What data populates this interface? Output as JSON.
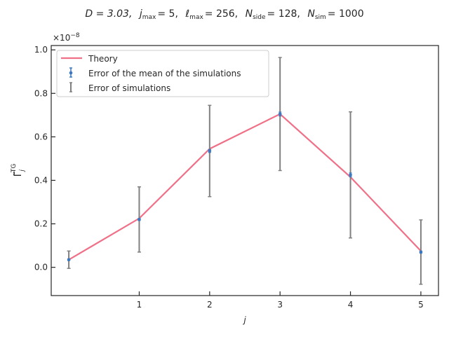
{
  "chart_data": {
    "type": "line",
    "title_parts": {
      "d": "D = 3.03,",
      "jmax": "j",
      "jmax_sub": "max",
      "jmax_val": "= 5,",
      "lmax": "ℓ",
      "lmax_sub": "max",
      "lmax_val": "= 256,",
      "nside": "N",
      "nside_sub": "side",
      "nside_val": "= 128,",
      "nsim": "N",
      "nsim_sub": "sim",
      "nsim_val": "= 1000"
    },
    "xlabel": "j",
    "ylabel": "Γ̃",
    "ylabel_sub": "j",
    "ylabel_sup": "TG",
    "y_scale_factor": "×10",
    "y_scale_exp": "−8",
    "xlim": [
      -0.25,
      5.25
    ],
    "ylim": [
      -0.13,
      1.02
    ],
    "x_ticks": [
      1,
      2,
      3,
      4,
      5
    ],
    "y_ticks": [
      0.0,
      0.2,
      0.4,
      0.6,
      0.8,
      1.0
    ],
    "y_tick_labels": [
      "0.0",
      "0.2",
      "0.4",
      "0.6",
      "0.8",
      "1.0"
    ],
    "legend_position": "top-left",
    "series": [
      {
        "name": "Theory",
        "kind": "line",
        "color": "#f07088",
        "x": [
          0,
          1,
          2,
          3,
          4,
          5
        ],
        "y": [
          0.035,
          0.225,
          0.545,
          0.705,
          0.415,
          0.075
        ]
      },
      {
        "name": "Error of the mean of the simulations",
        "kind": "errorbar",
        "color": "#3a78c2",
        "x": [
          0,
          1,
          2,
          3,
          4,
          5
        ],
        "y": [
          0.035,
          0.22,
          0.535,
          0.705,
          0.425,
          0.07
        ],
        "err": [
          0.004,
          0.005,
          0.007,
          0.009,
          0.009,
          0.005
        ]
      },
      {
        "name": "Error of simulations",
        "kind": "errorbar",
        "color": "#808080",
        "x": [
          0,
          1,
          2,
          3,
          4,
          5
        ],
        "y": [
          0.035,
          0.22,
          0.535,
          0.705,
          0.425,
          0.07
        ],
        "err": [
          0.04,
          0.15,
          0.21,
          0.26,
          0.29,
          0.148
        ]
      }
    ]
  }
}
